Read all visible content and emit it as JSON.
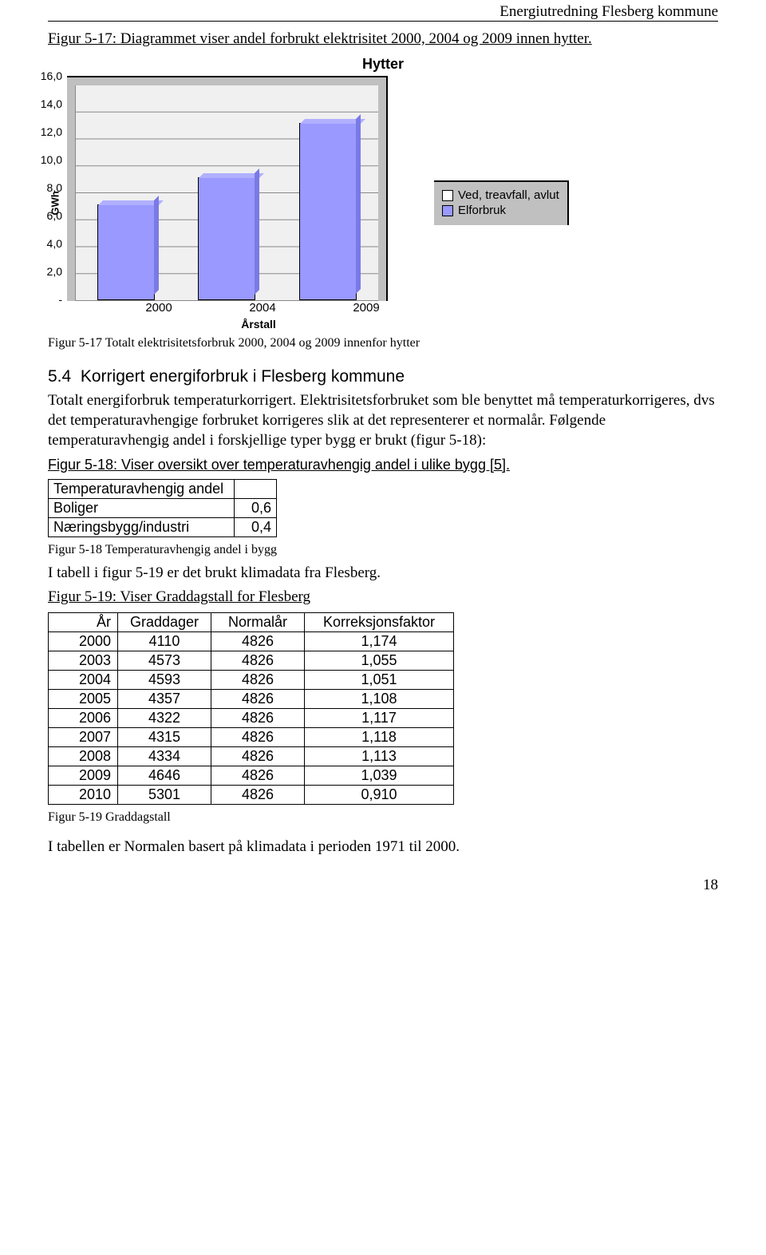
{
  "header": "Energiutredning Flesberg kommune",
  "fig517_title": "Figur 5-17: Diagrammet viser andel forbrukt elektrisitet 2000, 2004 og 2009 innen hytter.",
  "chart": {
    "title": "Hytter",
    "y_label": "GWh",
    "x_label": "Årstall",
    "ylim_max": 16,
    "y_ticks": [
      "16,0",
      "14,0",
      "12,0",
      "10,0",
      "8,0",
      "6,0",
      "4,0",
      "2,0",
      "-"
    ],
    "categories": [
      "2000",
      "2004",
      "2009"
    ],
    "values": [
      7.0,
      9.0,
      13.0
    ],
    "bar_color": "#9999ff",
    "plot_bg": "#c0c0c0",
    "inner_bg": "#f0f0f0"
  },
  "legend": {
    "items": [
      {
        "label": "Ved, treavfall, avlut",
        "color": "#ffffff"
      },
      {
        "label": "Elforbruk",
        "color": "#9999ff"
      }
    ]
  },
  "fig517_caption": "Figur 5-17 Totalt elektrisitetsforbruk 2000, 2004 og 2009 innenfor hytter",
  "section": {
    "num": "5.4",
    "title": "Korrigert energiforbruk i Flesberg kommune"
  },
  "body1a": "Totalt energiforbruk temperaturkorrigert. Elektrisitetsforbruket som ble benyttet må temperaturkorrigeres, dvs det temperaturavhengige forbruket korrigeres slik at det representerer et normalår. Følgende temperaturavhengig andel i forskjellige typer bygg er brukt (figur 5-18):",
  "fig518_title": "Figur 5-18: Viser oversikt over temperaturavhengig andel i ulike bygg [5].",
  "tbl_a": {
    "header": "Temperaturavhengig andel",
    "rows": [
      {
        "k": "Boliger",
        "v": "0,6"
      },
      {
        "k": "Næringsbygg/industri",
        "v": "0,4"
      }
    ]
  },
  "fig518_caption": "Figur 5-18 Temperaturavhengig andel i bygg",
  "body2": "I tabell i figur 5-19 er det brukt klimadata fra Flesberg.",
  "fig519_title": "Figur 5-19: Viser Graddagstall for Flesberg",
  "tbl_b": {
    "headers": [
      "År",
      "Graddager",
      "Normalår",
      "Korreksjonsfaktor"
    ],
    "rows": [
      [
        "2000",
        "4110",
        "4826",
        "1,174"
      ],
      [
        "2003",
        "4573",
        "4826",
        "1,055"
      ],
      [
        "2004",
        "4593",
        "4826",
        "1,051"
      ],
      [
        "2005",
        "4357",
        "4826",
        "1,108"
      ],
      [
        "2006",
        "4322",
        "4826",
        "1,117"
      ],
      [
        "2007",
        "4315",
        "4826",
        "1,118"
      ],
      [
        "2008",
        "4334",
        "4826",
        "1,113"
      ],
      [
        "2009",
        "4646",
        "4826",
        "1,039"
      ],
      [
        "2010",
        "5301",
        "4826",
        "0,910"
      ]
    ]
  },
  "fig519_caption": "Figur 5-19 Graddagstall",
  "body3": "I tabellen er Normalen basert på klimadata i perioden 1971 til 2000.",
  "page_num": "18"
}
